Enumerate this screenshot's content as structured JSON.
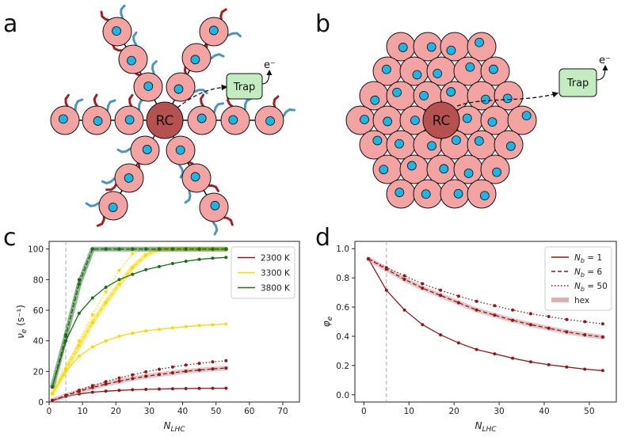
{
  "panels": {
    "a": {
      "label": "a",
      "rc_label": "RC",
      "trap_label": "Trap",
      "electron_label": "e⁻"
    },
    "b": {
      "label": "b",
      "rc_label": "RC",
      "trap_label": "Trap",
      "electron_label": "e⁻"
    },
    "c": {
      "label": "c"
    },
    "d": {
      "label": "d"
    }
  },
  "colors": {
    "antenna": "#f4a3a3",
    "rc": "#b5524f",
    "trap": "#c3edc0",
    "pigment": "#1bb5e6",
    "protein_red": "#9b2226",
    "protein_blue": "#4f94be",
    "dark_red": "#8b1a1a",
    "yellow": "#f5d90a",
    "green": "#1e6b1e",
    "hex_band": "#cc8f96"
  },
  "chart_data": [
    {
      "id": "c",
      "type": "line",
      "xlabel": "N_LHC",
      "ylabel": "ν_e (s⁻¹)",
      "xlim": [
        0,
        75
      ],
      "ylim": [
        0,
        105
      ],
      "xticks": [
        "0",
        "10",
        "20",
        "30",
        "40",
        "50",
        "60",
        "70"
      ],
      "yticks": [
        "0",
        "20",
        "40",
        "60",
        "80",
        "100"
      ],
      "vline_x": 5,
      "legend": [
        {
          "label": "2300 K",
          "color": "#8b1a1a"
        },
        {
          "label": "3300 K",
          "color": "#f5d90a"
        },
        {
          "label": "3800 K",
          "color": "#1e6b1e"
        }
      ],
      "series": [
        {
          "name": "2300 K, N_b = 1",
          "color": "#8b1a1a",
          "style": "solid",
          "x": [
            1,
            5,
            9,
            13,
            17,
            21,
            25,
            29,
            33,
            37,
            41,
            45,
            49,
            53
          ],
          "y": [
            1.0,
            3.6,
            5.3,
            6.4,
            7.1,
            7.6,
            8.0,
            8.3,
            8.5,
            8.7,
            8.8,
            8.9,
            9.0,
            9.0
          ]
        },
        {
          "name": "2300 K, hex",
          "color": "#cc8f96",
          "style": "band",
          "x": [
            1,
            5,
            9,
            13,
            17,
            21,
            25,
            29,
            33,
            37,
            41,
            45,
            49,
            53
          ],
          "y": [
            1.1,
            4.2,
            7.0,
            9.5,
            11.7,
            13.6,
            15.3,
            16.8,
            18.0,
            19.1,
            20.1,
            20.9,
            21.6,
            22.2
          ]
        },
        {
          "name": "2300 K, N_b = 6",
          "color": "#8b1a1a",
          "style": "dashed",
          "x": [
            1,
            5,
            9,
            13,
            17,
            21,
            25,
            29,
            33,
            37,
            41,
            45,
            49,
            53
          ],
          "y": [
            1.1,
            4.2,
            7.0,
            9.5,
            11.7,
            13.6,
            15.3,
            16.8,
            18.0,
            19.1,
            20.1,
            20.9,
            21.6,
            22.2
          ]
        },
        {
          "name": "2300 K, N_b = 50",
          "color": "#8b1a1a",
          "style": "dotted",
          "x": [
            1,
            5,
            9,
            13,
            17,
            21,
            25,
            29,
            33,
            37,
            41,
            45,
            49,
            53
          ],
          "y": [
            1.1,
            4.4,
            7.7,
            10.7,
            13.3,
            15.7,
            17.8,
            19.7,
            21.4,
            22.9,
            24.2,
            25.3,
            26.2,
            27.0
          ]
        },
        {
          "name": "3300 K, N_b = 1",
          "color": "#f5d90a",
          "style": "solid",
          "x": [
            1,
            5,
            9,
            13,
            17,
            21,
            25,
            29,
            33,
            37,
            41,
            45,
            49,
            53
          ],
          "y": [
            5.5,
            20.0,
            30.0,
            36.0,
            40.0,
            43.0,
            45.0,
            46.5,
            47.5,
            48.5,
            49.3,
            50.0,
            50.5,
            51.0
          ]
        },
        {
          "name": "3300 K, hex",
          "color": "#f5d90a",
          "style": "band",
          "x": [
            1,
            5,
            9,
            13,
            17,
            21,
            25,
            29,
            33,
            37,
            41,
            45,
            49,
            53
          ],
          "y": [
            5.5,
            21.0,
            37.0,
            52.0,
            65.0,
            77.0,
            88.0,
            96.0,
            100,
            100,
            100,
            100,
            100,
            100
          ]
        },
        {
          "name": "3300 K, N_b = 6",
          "color": "#f5d90a",
          "style": "dashed",
          "x": [
            1,
            5,
            9,
            13,
            17,
            21,
            25,
            29,
            33,
            37,
            41,
            45,
            49,
            53
          ],
          "y": [
            5.5,
            21.0,
            37.0,
            52.0,
            65.0,
            77.0,
            88.0,
            96.0,
            100,
            100,
            100,
            100,
            100,
            100
          ]
        },
        {
          "name": "3300 K, N_b = 50",
          "color": "#f5d90a",
          "style": "dotted",
          "x": [
            1,
            5,
            9,
            13,
            17,
            21,
            25,
            29,
            33,
            37,
            41,
            45,
            49,
            53
          ],
          "y": [
            5.5,
            22.0,
            40.0,
            57.0,
            72.0,
            86.0,
            97.0,
            100,
            100,
            100,
            100,
            100,
            100,
            100
          ]
        },
        {
          "name": "3800 K, N_b = 1",
          "color": "#1e6b1e",
          "style": "solid",
          "x": [
            1,
            5,
            9,
            13,
            17,
            21,
            25,
            29,
            33,
            37,
            41,
            45,
            49,
            53
          ],
          "y": [
            10.0,
            40.0,
            58.0,
            68.0,
            75.0,
            80.0,
            83.5,
            86.5,
            88.5,
            90.5,
            92.0,
            93.2,
            94.0,
            94.5
          ]
        },
        {
          "name": "3800 K, hex",
          "color": "#1e6b1e",
          "style": "band",
          "x": [
            1,
            5,
            9,
            13,
            17,
            21,
            25,
            29,
            33,
            37,
            41,
            45,
            49,
            53
          ],
          "y": [
            10.0,
            43.0,
            77.0,
            100,
            100,
            100,
            100,
            100,
            100,
            100,
            100,
            100,
            100,
            100
          ]
        },
        {
          "name": "3800 K, N_b = 6",
          "color": "#1e6b1e",
          "style": "dashed",
          "x": [
            1,
            5,
            9,
            13,
            17,
            21,
            25,
            29,
            33,
            37,
            41,
            45,
            49,
            53
          ],
          "y": [
            10.0,
            43.0,
            77.0,
            100,
            100,
            100,
            100,
            100,
            100,
            100,
            100,
            100,
            100,
            100
          ]
        },
        {
          "name": "3800 K, N_b = 50",
          "color": "#1e6b1e",
          "style": "dotted",
          "x": [
            1,
            5,
            9,
            13,
            17,
            21,
            25,
            29,
            33,
            37,
            41,
            45,
            49,
            53
          ],
          "y": [
            10.0,
            44.0,
            80.0,
            100,
            100,
            100,
            100,
            100,
            100,
            100,
            100,
            100,
            100,
            100
          ]
        }
      ]
    },
    {
      "id": "d",
      "type": "line",
      "xlabel": "N_LHC",
      "ylabel": "φ_e",
      "xlim": [
        -2,
        56
      ],
      "ylim": [
        -0.05,
        1.05
      ],
      "xticks": [
        "0",
        "10",
        "20",
        "30",
        "40",
        "50"
      ],
      "yticks": [
        "0.0",
        "0.2",
        "0.4",
        "0.6",
        "0.8",
        "1.0"
      ],
      "vline_x": 5,
      "legend": [
        {
          "label": "N_b = 1",
          "color": "#8b1a1a",
          "style": "solid"
        },
        {
          "label": "N_b = 6",
          "color": "#8b1a1a",
          "style": "dashed"
        },
        {
          "label": "N_b = 50",
          "color": "#8b1a1a",
          "style": "dotted"
        },
        {
          "label": "hex",
          "color": "#cc8f96",
          "style": "band"
        }
      ],
      "series": [
        {
          "name": "N_b = 1",
          "color": "#8b1a1a",
          "style": "solid",
          "x": [
            1,
            5,
            9,
            13,
            17,
            21,
            25,
            29,
            33,
            37,
            41,
            45,
            49,
            53
          ],
          "y": [
            0.93,
            0.715,
            0.58,
            0.48,
            0.41,
            0.355,
            0.31,
            0.28,
            0.25,
            0.225,
            0.205,
            0.19,
            0.175,
            0.165
          ]
        },
        {
          "name": "hex",
          "color": "#cc8f96",
          "style": "band",
          "x": [
            1,
            5,
            9,
            13,
            17,
            21,
            25,
            29,
            33,
            37,
            41,
            45,
            49,
            53
          ],
          "y": [
            0.93,
            0.86,
            0.79,
            0.73,
            0.68,
            0.63,
            0.58,
            0.545,
            0.51,
            0.48,
            0.455,
            0.43,
            0.41,
            0.395
          ]
        },
        {
          "name": "N_b = 6",
          "color": "#8b1a1a",
          "style": "dashed",
          "x": [
            1,
            5,
            9,
            13,
            17,
            21,
            25,
            29,
            33,
            37,
            41,
            45,
            49,
            53
          ],
          "y": [
            0.93,
            0.86,
            0.79,
            0.73,
            0.68,
            0.63,
            0.58,
            0.545,
            0.51,
            0.48,
            0.455,
            0.43,
            0.41,
            0.395
          ]
        },
        {
          "name": "N_b = 50",
          "color": "#8b1a1a",
          "style": "dotted",
          "x": [
            1,
            5,
            9,
            13,
            17,
            21,
            25,
            29,
            33,
            37,
            41,
            45,
            49,
            53
          ],
          "y": [
            0.93,
            0.87,
            0.815,
            0.76,
            0.715,
            0.675,
            0.64,
            0.61,
            0.58,
            0.555,
            0.535,
            0.515,
            0.5,
            0.485
          ]
        }
      ]
    }
  ]
}
